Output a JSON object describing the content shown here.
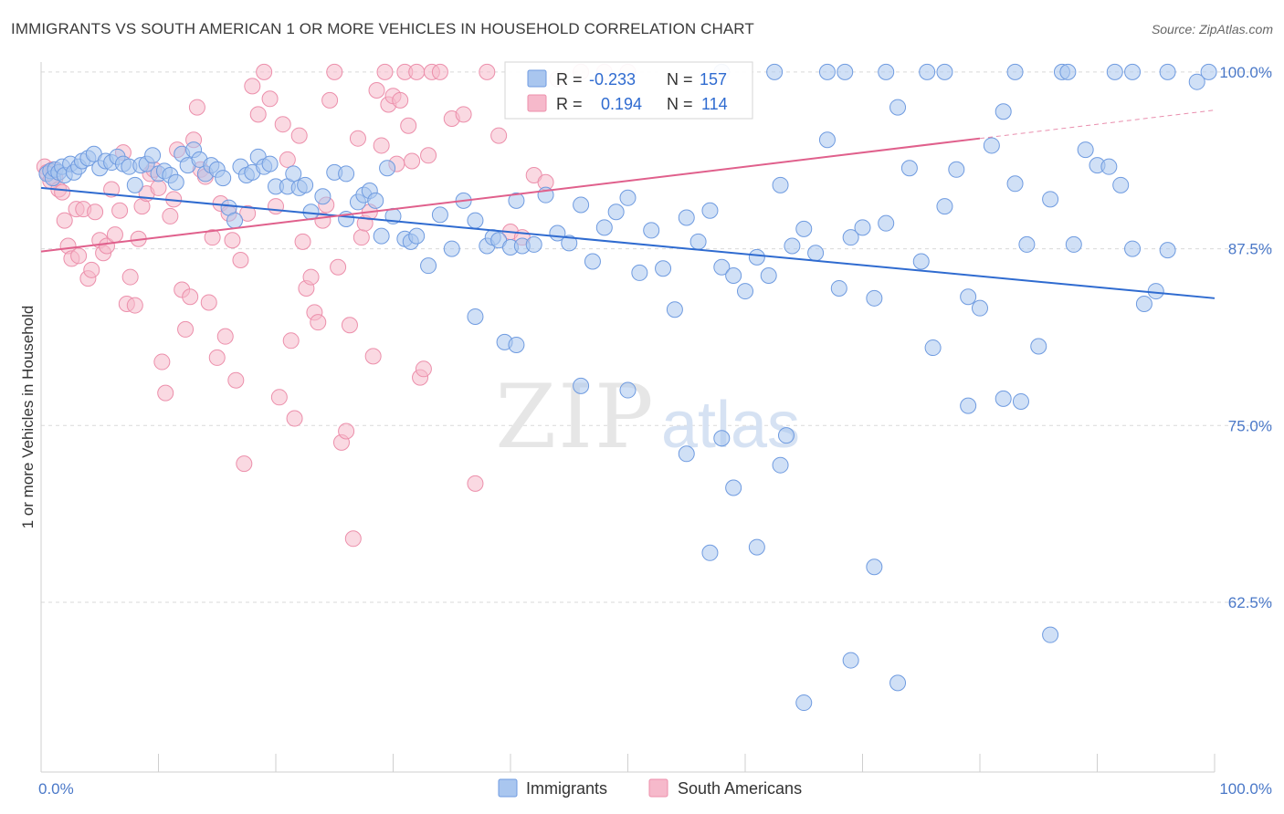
{
  "title": "IMMIGRANTS VS SOUTH AMERICAN 1 OR MORE VEHICLES IN HOUSEHOLD CORRELATION CHART",
  "source": "Source: ZipAtlas.com",
  "watermark": {
    "zip": "ZIP",
    "atlas": "atlas"
  },
  "colors": {
    "immigrants_fill": "#a9c6ef",
    "immigrants_stroke": "#6f9be0",
    "immigrants_line": "#2f6bd0",
    "south_fill": "#f6b9cb",
    "south_stroke": "#ec8fab",
    "south_line": "#e0608c",
    "grid": "#d9d9d9",
    "tick_text": "#4a78c8"
  },
  "stats_box": {
    "row1": {
      "r_label": "R =",
      "r_value": "-0.233",
      "n_label": "N =",
      "n_value": "157"
    },
    "row2": {
      "r_label": "R =",
      "r_value": "0.194",
      "n_label": "N =",
      "n_value": "114"
    }
  },
  "chart_data": {
    "type": "scatter",
    "title": "IMMIGRANTS VS SOUTH AMERICAN 1 OR MORE VEHICLES IN HOUSEHOLD CORRELATION CHART",
    "xlabel": "",
    "ylabel": "1 or more Vehicles in Household",
    "xlim": [
      0,
      100
    ],
    "ylim": [
      50.5,
      100.7
    ],
    "x_tick_labels": [
      "0.0%",
      "100.0%"
    ],
    "y_ticks": [
      {
        "value": 100.0,
        "label": "100.0%"
      },
      {
        "value": 87.5,
        "label": "87.5%"
      },
      {
        "value": 75.0,
        "label": "75.0%"
      },
      {
        "value": 62.5,
        "label": "62.5%"
      }
    ],
    "grid": "horizontal dashed",
    "legend_position": "bottom-center",
    "series": [
      {
        "name": "Immigrants",
        "r": -0.233,
        "n": 157,
        "trend": {
          "x": [
            0,
            100
          ],
          "y": [
            91.8,
            84.0
          ]
        },
        "points": [
          [
            0.5,
            92.8
          ],
          [
            0.8,
            93.0
          ],
          [
            1.0,
            92.5
          ],
          [
            1.2,
            93.1
          ],
          [
            1.5,
            92.9
          ],
          [
            1.8,
            93.3
          ],
          [
            2.0,
            92.7
          ],
          [
            2.5,
            93.5
          ],
          [
            2.8,
            92.9
          ],
          [
            3.2,
            93.3
          ],
          [
            3.5,
            93.7
          ],
          [
            4.0,
            93.9
          ],
          [
            4.5,
            94.2
          ],
          [
            5.0,
            93.2
          ],
          [
            5.5,
            93.7
          ],
          [
            6.0,
            93.6
          ],
          [
            6.5,
            94.0
          ],
          [
            7.0,
            93.5
          ],
          [
            7.5,
            93.3
          ],
          [
            8.0,
            92.0
          ],
          [
            8.5,
            93.4
          ],
          [
            9.0,
            93.5
          ],
          [
            9.5,
            94.1
          ],
          [
            10.0,
            92.8
          ],
          [
            10.5,
            93.0
          ],
          [
            11.0,
            92.7
          ],
          [
            11.5,
            92.2
          ],
          [
            12.0,
            94.2
          ],
          [
            12.5,
            93.4
          ],
          [
            13.0,
            94.5
          ],
          [
            13.5,
            93.8
          ],
          [
            14.0,
            92.8
          ],
          [
            14.5,
            93.4
          ],
          [
            15.0,
            93.1
          ],
          [
            15.5,
            92.5
          ],
          [
            16.0,
            90.4
          ],
          [
            16.5,
            89.5
          ],
          [
            17.0,
            93.3
          ],
          [
            17.5,
            92.7
          ],
          [
            18.0,
            92.9
          ],
          [
            18.5,
            94.0
          ],
          [
            19.0,
            93.3
          ],
          [
            19.5,
            93.5
          ],
          [
            20.0,
            91.9
          ],
          [
            21.0,
            91.9
          ],
          [
            21.5,
            92.8
          ],
          [
            22.0,
            91.8
          ],
          [
            22.5,
            92.0
          ],
          [
            23.0,
            90.1
          ],
          [
            24.0,
            91.2
          ],
          [
            25.0,
            92.9
          ],
          [
            26.0,
            89.6
          ],
          [
            26.0,
            92.8
          ],
          [
            27.0,
            90.8
          ],
          [
            27.5,
            91.3
          ],
          [
            28.0,
            91.6
          ],
          [
            28.5,
            90.9
          ],
          [
            29.0,
            88.4
          ],
          [
            29.5,
            93.2
          ],
          [
            30.0,
            89.8
          ],
          [
            31.0,
            88.2
          ],
          [
            31.5,
            88.0
          ],
          [
            32.0,
            88.4
          ],
          [
            33.0,
            86.3
          ],
          [
            34.0,
            89.9
          ],
          [
            35.0,
            87.5
          ],
          [
            36.0,
            90.9
          ],
          [
            37.0,
            89.5
          ],
          [
            38.0,
            87.7
          ],
          [
            38.5,
            88.3
          ],
          [
            39.0,
            88.1
          ],
          [
            40.0,
            87.6
          ],
          [
            40.5,
            90.9
          ],
          [
            41.0,
            87.7
          ],
          [
            42.0,
            87.8
          ],
          [
            43.0,
            91.3
          ],
          [
            44.0,
            88.6
          ],
          [
            45.0,
            87.9
          ],
          [
            46.0,
            90.6
          ],
          [
            47.0,
            86.6
          ],
          [
            48.0,
            89.0
          ],
          [
            49.0,
            90.1
          ],
          [
            50.0,
            91.1
          ],
          [
            51.0,
            85.8
          ],
          [
            52.0,
            88.8
          ],
          [
            53.0,
            86.1
          ],
          [
            54.0,
            83.2
          ],
          [
            55.0,
            89.7
          ],
          [
            56.0,
            88.0
          ],
          [
            57.0,
            90.2
          ],
          [
            58.0,
            86.2
          ],
          [
            59.0,
            85.6
          ],
          [
            60.0,
            84.5
          ],
          [
            61.0,
            86.9
          ],
          [
            62.0,
            85.6
          ],
          [
            63.0,
            92.0
          ],
          [
            64.0,
            87.7
          ],
          [
            65.0,
            88.9
          ],
          [
            66.0,
            87.2
          ],
          [
            67.0,
            95.2
          ],
          [
            68.0,
            84.7
          ],
          [
            69.0,
            88.3
          ],
          [
            70.0,
            89.0
          ],
          [
            71.0,
            84.0
          ],
          [
            72.0,
            89.3
          ],
          [
            73.0,
            97.5
          ],
          [
            74.0,
            93.2
          ],
          [
            75.0,
            86.6
          ],
          [
            76.0,
            80.5
          ],
          [
            77.0,
            90.5
          ],
          [
            78.0,
            93.1
          ],
          [
            79.0,
            84.1
          ],
          [
            80.0,
            83.3
          ],
          [
            81.0,
            94.8
          ],
          [
            82.0,
            97.2
          ],
          [
            83.0,
            92.1
          ],
          [
            84.0,
            87.8
          ],
          [
            85.0,
            80.6
          ],
          [
            86.0,
            91.0
          ],
          [
            87.0,
            100.0
          ],
          [
            88.0,
            87.8
          ],
          [
            89.0,
            94.5
          ],
          [
            90.0,
            93.4
          ],
          [
            91.0,
            93.3
          ],
          [
            92.0,
            92.0
          ],
          [
            93.0,
            87.5
          ],
          [
            94.0,
            83.6
          ],
          [
            95.0,
            84.5
          ],
          [
            96.0,
            87.4
          ],
          [
            98.5,
            99.3
          ],
          [
            37.0,
            82.7
          ],
          [
            39.5,
            80.9
          ],
          [
            40.5,
            80.7
          ],
          [
            46.0,
            77.8
          ],
          [
            50.0,
            77.5
          ],
          [
            55.0,
            73.0
          ],
          [
            58.0,
            74.1
          ],
          [
            59.0,
            70.6
          ],
          [
            63.0,
            72.2
          ],
          [
            63.5,
            74.3
          ],
          [
            57.0,
            66.0
          ],
          [
            61.0,
            66.4
          ],
          [
            71.0,
            65.0
          ],
          [
            73.0,
            56.8
          ],
          [
            69.0,
            58.4
          ],
          [
            65.0,
            55.4
          ],
          [
            86.0,
            60.2
          ],
          [
            79.0,
            76.4
          ],
          [
            82.0,
            76.9
          ],
          [
            83.5,
            76.7
          ],
          [
            67.0,
            100.0
          ],
          [
            68.5,
            100.0
          ],
          [
            72.0,
            100.0
          ],
          [
            75.5,
            100.0
          ],
          [
            77.0,
            100.0
          ],
          [
            83.0,
            100.0
          ],
          [
            87.5,
            100.0
          ],
          [
            91.5,
            100.0
          ],
          [
            93.0,
            100.0
          ],
          [
            96.0,
            100.0
          ],
          [
            99.5,
            100.0
          ],
          [
            62.5,
            100.0
          ],
          [
            58.0,
            100.0
          ]
        ]
      },
      {
        "name": "South Americans",
        "r": 0.194,
        "n": 114,
        "trend": {
          "x": [
            0,
            80
          ],
          "y": [
            87.3,
            95.3
          ]
        },
        "trend_extension": {
          "x": [
            80,
            100
          ],
          "y": [
            95.3,
            97.3
          ]
        },
        "points": [
          [
            0.3,
            93.3
          ],
          [
            0.5,
            92.9
          ],
          [
            0.8,
            92.3
          ],
          [
            1.0,
            93.1
          ],
          [
            1.2,
            92.5
          ],
          [
            1.5,
            91.7
          ],
          [
            1.8,
            91.5
          ],
          [
            2.0,
            89.5
          ],
          [
            2.3,
            87.7
          ],
          [
            2.6,
            86.8
          ],
          [
            3.0,
            90.3
          ],
          [
            3.2,
            87.0
          ],
          [
            3.6,
            90.3
          ],
          [
            4.0,
            85.4
          ],
          [
            4.3,
            86.0
          ],
          [
            4.6,
            90.1
          ],
          [
            5.0,
            88.1
          ],
          [
            5.3,
            87.2
          ],
          [
            5.6,
            87.7
          ],
          [
            6.0,
            91.7
          ],
          [
            6.3,
            88.5
          ],
          [
            6.7,
            90.2
          ],
          [
            7.0,
            94.3
          ],
          [
            7.3,
            83.6
          ],
          [
            7.6,
            85.5
          ],
          [
            8.0,
            83.5
          ],
          [
            8.3,
            88.2
          ],
          [
            8.6,
            90.5
          ],
          [
            9.0,
            91.4
          ],
          [
            9.3,
            92.8
          ],
          [
            9.6,
            93.1
          ],
          [
            10.0,
            91.8
          ],
          [
            10.3,
            79.5
          ],
          [
            10.6,
            77.3
          ],
          [
            11.0,
            89.8
          ],
          [
            11.3,
            91.0
          ],
          [
            11.6,
            94.5
          ],
          [
            12.0,
            84.6
          ],
          [
            12.3,
            81.8
          ],
          [
            12.7,
            84.1
          ],
          [
            13.0,
            95.2
          ],
          [
            13.3,
            97.5
          ],
          [
            13.6,
            93.1
          ],
          [
            14.0,
            92.6
          ],
          [
            14.3,
            83.7
          ],
          [
            14.6,
            88.3
          ],
          [
            15.0,
            79.8
          ],
          [
            15.3,
            90.7
          ],
          [
            15.7,
            81.3
          ],
          [
            16.0,
            90.0
          ],
          [
            16.3,
            88.1
          ],
          [
            16.6,
            78.2
          ],
          [
            17.0,
            86.7
          ],
          [
            17.3,
            72.3
          ],
          [
            17.6,
            90.0
          ],
          [
            18.0,
            99.0
          ],
          [
            18.5,
            97.0
          ],
          [
            19.0,
            100.0
          ],
          [
            19.5,
            98.1
          ],
          [
            20.0,
            90.5
          ],
          [
            20.3,
            77.0
          ],
          [
            20.6,
            96.3
          ],
          [
            21.0,
            93.8
          ],
          [
            21.3,
            81.0
          ],
          [
            21.6,
            75.5
          ],
          [
            22.0,
            95.5
          ],
          [
            22.3,
            88.0
          ],
          [
            22.6,
            84.7
          ],
          [
            23.0,
            85.5
          ],
          [
            23.3,
            83.0
          ],
          [
            23.6,
            82.3
          ],
          [
            24.0,
            89.5
          ],
          [
            24.3,
            90.6
          ],
          [
            24.6,
            98.0
          ],
          [
            25.0,
            100.0
          ],
          [
            25.3,
            86.2
          ],
          [
            25.6,
            73.8
          ],
          [
            26.0,
            74.6
          ],
          [
            26.3,
            82.1
          ],
          [
            26.6,
            67.0
          ],
          [
            27.0,
            95.3
          ],
          [
            27.3,
            88.3
          ],
          [
            27.6,
            89.3
          ],
          [
            28.0,
            90.1
          ],
          [
            28.3,
            79.9
          ],
          [
            28.6,
            98.7
          ],
          [
            29.0,
            94.8
          ],
          [
            29.3,
            100.0
          ],
          [
            29.6,
            97.7
          ],
          [
            30.0,
            98.3
          ],
          [
            30.3,
            93.5
          ],
          [
            30.6,
            98.0
          ],
          [
            31.0,
            100.0
          ],
          [
            31.3,
            96.2
          ],
          [
            31.6,
            93.7
          ],
          [
            32.0,
            100.0
          ],
          [
            32.3,
            78.4
          ],
          [
            32.6,
            79.0
          ],
          [
            33.0,
            94.1
          ],
          [
            33.3,
            100.0
          ],
          [
            34.0,
            100.0
          ],
          [
            35.0,
            96.7
          ],
          [
            36.0,
            97.0
          ],
          [
            37.0,
            70.9
          ],
          [
            38.0,
            100.0
          ],
          [
            39.0,
            95.5
          ],
          [
            40.0,
            88.7
          ],
          [
            41.0,
            88.3
          ],
          [
            42.0,
            92.7
          ],
          [
            43.0,
            92.2
          ],
          [
            44.0,
            99.5
          ],
          [
            46.0,
            100.0
          ],
          [
            48.0,
            100.0
          ],
          [
            50.0,
            100.0
          ]
        ]
      }
    ]
  },
  "legend": {
    "items": [
      {
        "label": "Immigrants"
      },
      {
        "label": "South Americans"
      }
    ]
  }
}
